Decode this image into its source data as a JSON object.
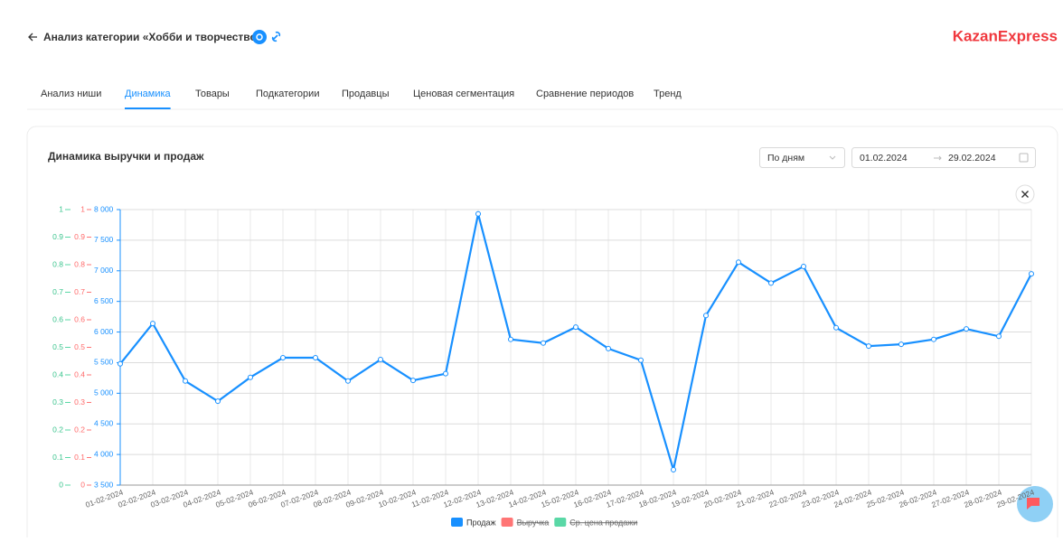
{
  "header": {
    "title": "Анализ категории «Хобби и творчество»",
    "logo": "KazanExpress"
  },
  "tabs": [
    "Анализ ниши",
    "Динамика",
    "Товары",
    "Подкатегории",
    "Продавцы",
    "Ценовая сегментация",
    "Сравнение периодов",
    "Тренд"
  ],
  "active_tab": 1,
  "card": {
    "title": "Динамика выручки и продаж",
    "period": "По дням",
    "date_from": "01.02.2024",
    "date_to": "29.02.2024"
  },
  "chart_data": {
    "type": "line",
    "categories": [
      "01-02-2024",
      "02-02-2024",
      "03-02-2024",
      "04-02-2024",
      "05-02-2024",
      "06-02-2024",
      "07-02-2024",
      "08-02-2024",
      "09-02-2024",
      "10-02-2024",
      "11-02-2024",
      "12-02-2024",
      "13-02-2024",
      "14-02-2024",
      "15-02-2024",
      "16-02-2024",
      "17-02-2024",
      "18-02-2024",
      "19-02-2024",
      "20-02-2024",
      "21-02-2024",
      "22-02-2024",
      "23-02-2024",
      "24-02-2024",
      "25-02-2024",
      "26-02-2024",
      "27-02-2024",
      "28-02-2024",
      "29-02-2024"
    ],
    "series": [
      {
        "name": "Продаж",
        "color": "#1890ff",
        "values": [
          5480,
          6140,
          5200,
          4870,
          5260,
          5580,
          5580,
          5200,
          5550,
          5210,
          5320,
          7930,
          5880,
          5820,
          6080,
          5730,
          5540,
          3750,
          6270,
          7140,
          6800,
          7070,
          6070,
          5770,
          5800,
          5880,
          6050,
          5930,
          6950
        ]
      },
      {
        "name": "Выручка",
        "color": "#ff7575",
        "hidden": true
      },
      {
        "name": "Ср. цена продажи",
        "color": "#5ad8a6",
        "hidden": true
      }
    ],
    "ylim": [
      3500,
      8000
    ],
    "yticks": [
      {
        "value": 3500,
        "label": "3 500"
      },
      {
        "value": 4000,
        "label": "4 000"
      },
      {
        "value": 4500,
        "label": "4 500"
      },
      {
        "value": 5000,
        "label": "5 000"
      },
      {
        "value": 5500,
        "label": "5 500"
      },
      {
        "value": 6000,
        "label": "6 000"
      },
      {
        "value": 6500,
        "label": "6 500"
      },
      {
        "value": 7000,
        "label": "7 000"
      },
      {
        "value": 7500,
        "label": "7 500"
      },
      {
        "value": 8000,
        "label": "8 000"
      }
    ],
    "y2lim": [
      0,
      1
    ],
    "y2ticks": [
      0,
      0.1,
      0.2,
      0.3,
      0.4,
      0.5,
      0.6,
      0.7,
      0.8,
      0.9,
      1
    ],
    "y3lim": [
      0,
      1
    ],
    "y3ticks": [
      0,
      0.1,
      0.2,
      0.3,
      0.4,
      0.5,
      0.6,
      0.7,
      0.8,
      0.9,
      1
    ],
    "grid": true
  }
}
